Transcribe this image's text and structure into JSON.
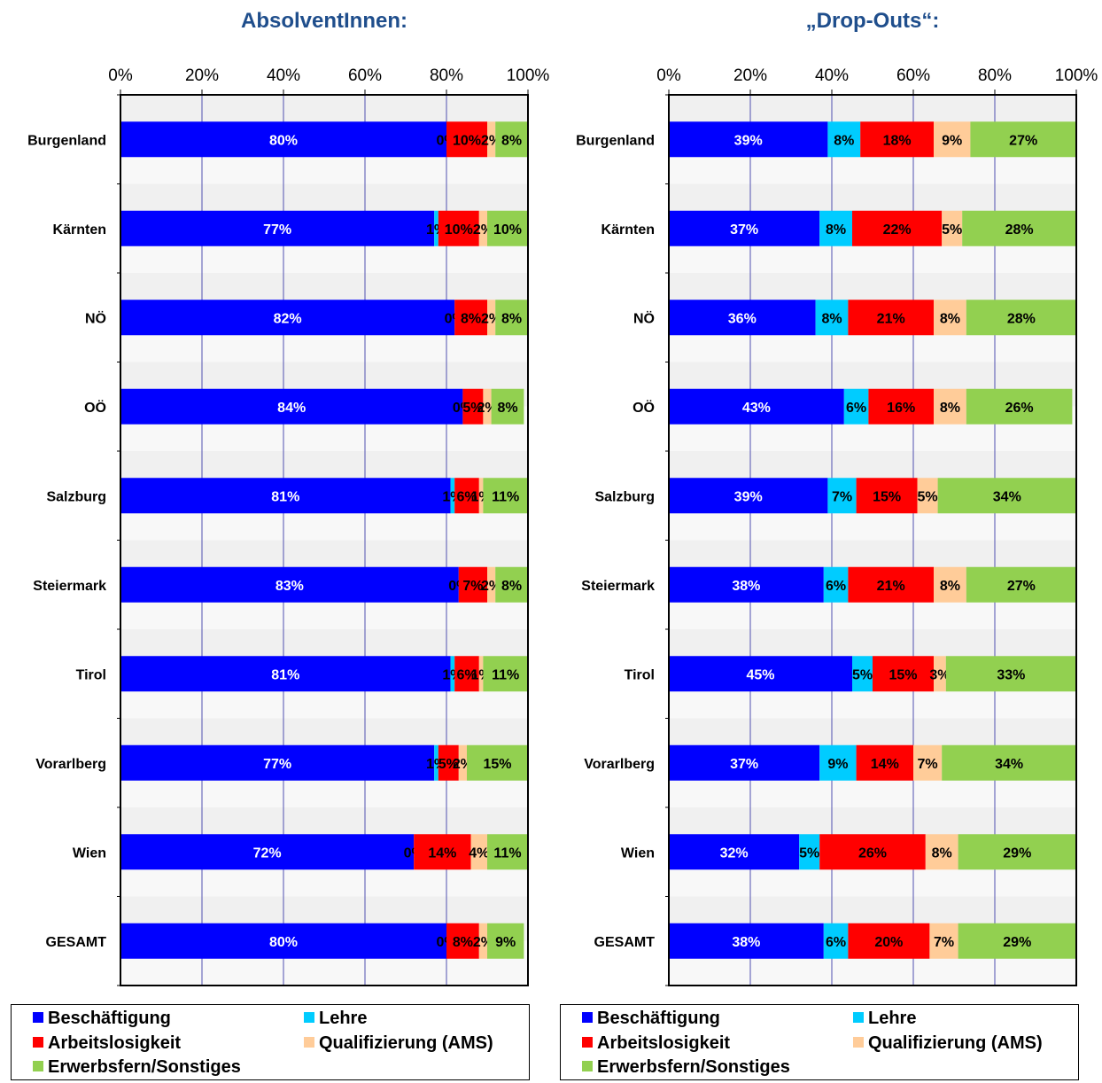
{
  "chart_data": [
    {
      "type": "bar",
      "stacked": true,
      "orientation": "horizontal",
      "title": "AbsolventInnen:",
      "xlim": [
        0,
        100
      ],
      "x_ticks": [
        "0%",
        "20%",
        "40%",
        "60%",
        "80%",
        "100%"
      ],
      "categories": [
        "Burgenland",
        "Kärnten",
        "NÖ",
        "OÖ",
        "Salzburg",
        "Steiermark",
        "Tirol",
        "Vorarlberg",
        "Wien",
        "GESAMT"
      ],
      "series": [
        {
          "name": "Beschäftigung",
          "color": "#0000ff",
          "values": [
            80,
            77,
            82,
            84,
            81,
            83,
            81,
            77,
            72,
            80
          ],
          "labels": [
            "80%",
            "77%",
            "82%",
            "84%",
            "81%",
            "83%",
            "81%",
            "77%",
            "72%",
            "80%"
          ]
        },
        {
          "name": "Lehre",
          "color": "#00ccff",
          "values": [
            0,
            1,
            0,
            0,
            1,
            0,
            1,
            1,
            0,
            0
          ],
          "labels": [
            "0%",
            "1%",
            "0%",
            "0%",
            "1%",
            "0%",
            "1%",
            "1%",
            "0%",
            "0%"
          ]
        },
        {
          "name": "Arbeitslosigkeit",
          "color": "#ff0000",
          "values": [
            10,
            10,
            8,
            5,
            6,
            7,
            6,
            5,
            14,
            8
          ],
          "labels": [
            "10%",
            "10%",
            "8%",
            "5%",
            "6%",
            "7%",
            "6%",
            "5%",
            "14%",
            "8%"
          ]
        },
        {
          "name": "Qualifizierung (AMS)",
          "color": "#ffcc99",
          "values": [
            2,
            2,
            2,
            2,
            1,
            2,
            1,
            2,
            4,
            2
          ],
          "labels": [
            "2%",
            "2%",
            "2%",
            "2%",
            "1%",
            "2%",
            "1%",
            "2%",
            "4%",
            "2%"
          ]
        },
        {
          "name": "Erwerbsfern/Sonstiges",
          "color": "#92d050",
          "values": [
            8,
            10,
            8,
            8,
            11,
            8,
            11,
            15,
            11,
            9
          ],
          "labels": [
            "8%",
            "10%",
            "8%",
            "8%",
            "11%",
            "8%",
            "11%",
            "15%",
            "11%",
            "9%"
          ]
        }
      ]
    },
    {
      "type": "bar",
      "stacked": true,
      "orientation": "horizontal",
      "title": "„Drop-Outs“:",
      "xlim": [
        0,
        100
      ],
      "x_ticks": [
        "0%",
        "20%",
        "40%",
        "60%",
        "80%",
        "100%"
      ],
      "categories": [
        "Burgenland",
        "Kärnten",
        "NÖ",
        "OÖ",
        "Salzburg",
        "Steiermark",
        "Tirol",
        "Vorarlberg",
        "Wien",
        "GESAMT"
      ],
      "series": [
        {
          "name": "Beschäftigung",
          "color": "#0000ff",
          "values": [
            39,
            37,
            36,
            43,
            39,
            38,
            45,
            37,
            32,
            38
          ],
          "labels": [
            "39%",
            "37%",
            "36%",
            "43%",
            "39%",
            "38%",
            "45%",
            "37%",
            "32%",
            "38%"
          ]
        },
        {
          "name": "Lehre",
          "color": "#00ccff",
          "values": [
            8,
            8,
            8,
            6,
            7,
            6,
            5,
            9,
            5,
            6
          ],
          "labels": [
            "8%",
            "8%",
            "8%",
            "6%",
            "7%",
            "6%",
            "5%",
            "9%",
            "5%",
            "6%"
          ]
        },
        {
          "name": "Arbeitslosigkeit",
          "color": "#ff0000",
          "values": [
            18,
            22,
            21,
            16,
            15,
            21,
            15,
            14,
            26,
            20
          ],
          "labels": [
            "18%",
            "22%",
            "21%",
            "16%",
            "15%",
            "21%",
            "15%",
            "14%",
            "26%",
            "20%"
          ]
        },
        {
          "name": "Qualifizierung (AMS)",
          "color": "#ffcc99",
          "values": [
            9,
            5,
            8,
            8,
            5,
            8,
            3,
            7,
            8,
            7
          ],
          "labels": [
            "9%",
            "5%",
            "8%",
            "8%",
            "5%",
            "8%",
            "3%",
            "7%",
            "8%",
            "7%"
          ]
        },
        {
          "name": "Erwerbsfern/Sonstiges",
          "color": "#92d050",
          "values": [
            27,
            28,
            28,
            26,
            34,
            27,
            33,
            34,
            29,
            29
          ],
          "labels": [
            "27%",
            "28%",
            "28%",
            "26%",
            "34%",
            "27%",
            "33%",
            "34%",
            "29%",
            "29%"
          ]
        }
      ]
    }
  ]
}
